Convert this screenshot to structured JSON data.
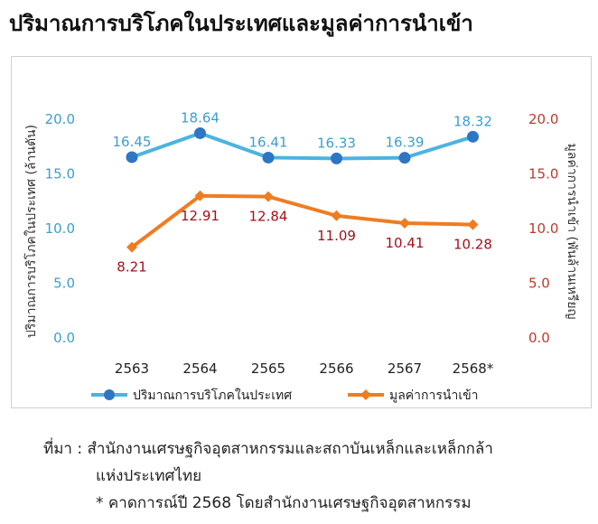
{
  "title": "ปริมาณการบริโภคในประเทศและมูลค่าการนำเข้า",
  "colors": {
    "consumption": "#4db3df",
    "consumption_marker": "#2e75c4",
    "import": "#ee7d22",
    "left_axis": "#3a9fd1",
    "right_axis": "#c0392b",
    "data_label_import": "#a50f1a"
  },
  "chart_data": {
    "type": "line",
    "categories": [
      "2563",
      "2564",
      "2565",
      "2566",
      "2567",
      "2568*"
    ],
    "ylim": [
      0,
      20
    ],
    "y_ticks": [
      "20.0",
      "15.0",
      "10.0",
      "5.0",
      "0.0"
    ],
    "y_tick_values": [
      20,
      15,
      10,
      5,
      0
    ],
    "ylabel_left": "ปริมาณการบริโภคในประเทศ (ล้านตัน)",
    "ylabel_right": "มูลค่าการนำเข้า (พันล้านเหรียญ",
    "grid": false,
    "legend_position": "bottom",
    "series": [
      {
        "name": "ปริมาณการบริโภคในประเทศ",
        "axis": "left",
        "values": [
          16.45,
          18.64,
          16.41,
          16.33,
          16.39,
          18.32
        ],
        "labels": [
          "16.45",
          "18.64",
          "16.41",
          "16.33",
          "16.39",
          "18.32"
        ]
      },
      {
        "name": "มูลค่าการนำเข้า",
        "axis": "right",
        "values": [
          8.21,
          12.91,
          12.84,
          11.09,
          10.41,
          10.28
        ],
        "labels": [
          "8.21",
          "12.91",
          "12.84",
          "11.09",
          "10.41",
          "10.28"
        ]
      }
    ]
  },
  "source": {
    "label": "ที่มา :",
    "line1": "สำนักงานเศรษฐกิจอุตสาหกรรมและสถาบันเหล็กและเหล็กกล้า",
    "line2": "แห่งประเทศไทย",
    "note": "* คาดการณ์ปี 2568 โดยสำนักงานเศรษฐกิจอุตสาหกรรม"
  }
}
